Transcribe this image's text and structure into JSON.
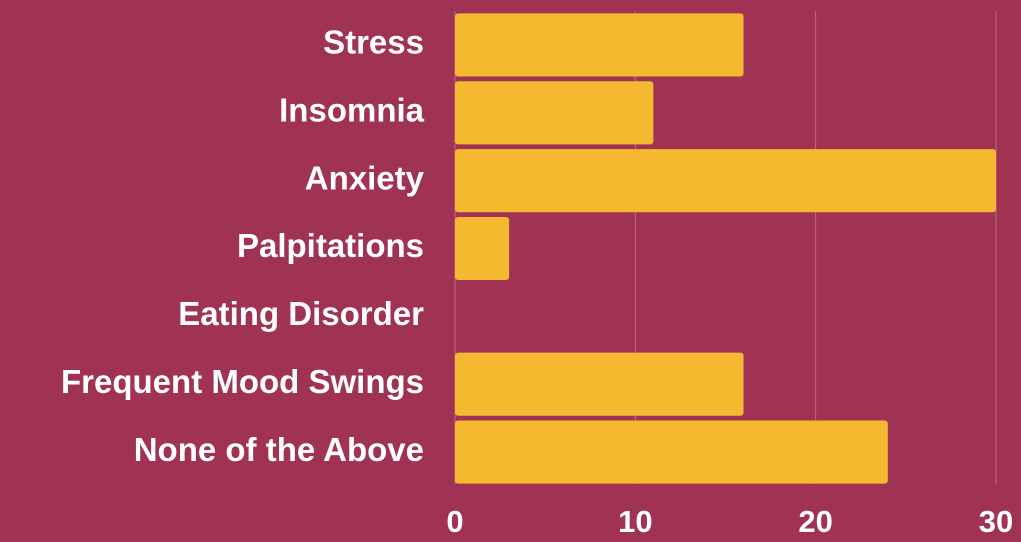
{
  "chart_data": {
    "type": "bar",
    "orientation": "horizontal",
    "categories": [
      "Stress",
      "Insomnia",
      "Anxiety",
      "Palpitations",
      "Eating Disorder",
      "Frequent Mood Swings",
      "None of the Above"
    ],
    "values": [
      16,
      11,
      30,
      3,
      0,
      16,
      24
    ],
    "color": "#f4b92e",
    "xlim": [
      0,
      30
    ],
    "xticks": [
      0,
      10,
      20,
      30
    ],
    "grid": true
  }
}
